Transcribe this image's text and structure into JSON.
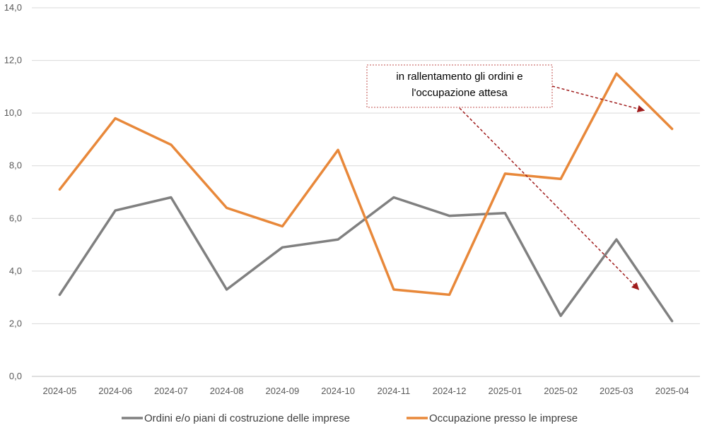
{
  "chart_data": {
    "type": "line",
    "categories": [
      "2024-05",
      "2024-06",
      "2024-07",
      "2024-08",
      "2024-09",
      "2024-10",
      "2024-11",
      "2024-12",
      "2025-01",
      "2025-02",
      "2025-03",
      "2025-04"
    ],
    "series": [
      {
        "name": "Ordini e/o piani di costruzione delle imprese",
        "color": "#808080",
        "values": [
          3.1,
          6.3,
          6.8,
          3.3,
          4.9,
          5.2,
          6.8,
          6.1,
          6.2,
          2.3,
          5.2,
          2.1
        ]
      },
      {
        "name": "Occupazione presso le imprese",
        "color": "#E8883A",
        "values": [
          7.1,
          9.8,
          8.8,
          6.4,
          5.7,
          8.6,
          3.3,
          3.1,
          7.7,
          7.5,
          11.5,
          9.4
        ]
      }
    ],
    "ylim": [
      0,
      14
    ],
    "yticks": [
      "0,0",
      "2,0",
      "4,0",
      "6,0",
      "8,0",
      "10,0",
      "12,0",
      "14,0"
    ],
    "ytick_values": [
      0,
      2,
      4,
      6,
      8,
      10,
      12,
      14
    ],
    "grid": true,
    "legend_position": "bottom",
    "annotation": {
      "lines": [
        "in rallentamento gli ordini e",
        "l'occupazione attesa"
      ],
      "arrow_color": "#A01C1C",
      "targets": [
        {
          "x_index": 10.5,
          "y": 10.1
        },
        {
          "x_index": 10.4,
          "y": 3.3
        }
      ]
    }
  }
}
